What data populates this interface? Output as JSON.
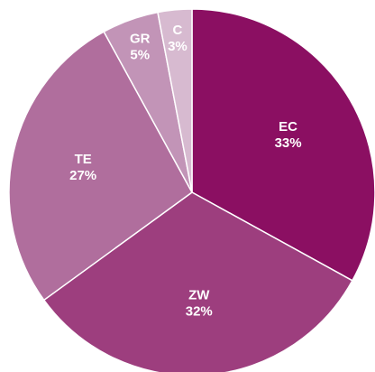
{
  "chart_data": {
    "type": "pie",
    "categories": [
      "EC",
      "ZW",
      "TE",
      "GR",
      "C"
    ],
    "values": [
      33,
      32,
      27,
      5,
      3
    ],
    "value_labels": [
      "33%",
      "32%",
      "27%",
      "5%",
      "3%"
    ],
    "colors": [
      "#8b0f62",
      "#9d3e7e",
      "#b06e9d",
      "#c294b7",
      "#d7bad0"
    ]
  }
}
